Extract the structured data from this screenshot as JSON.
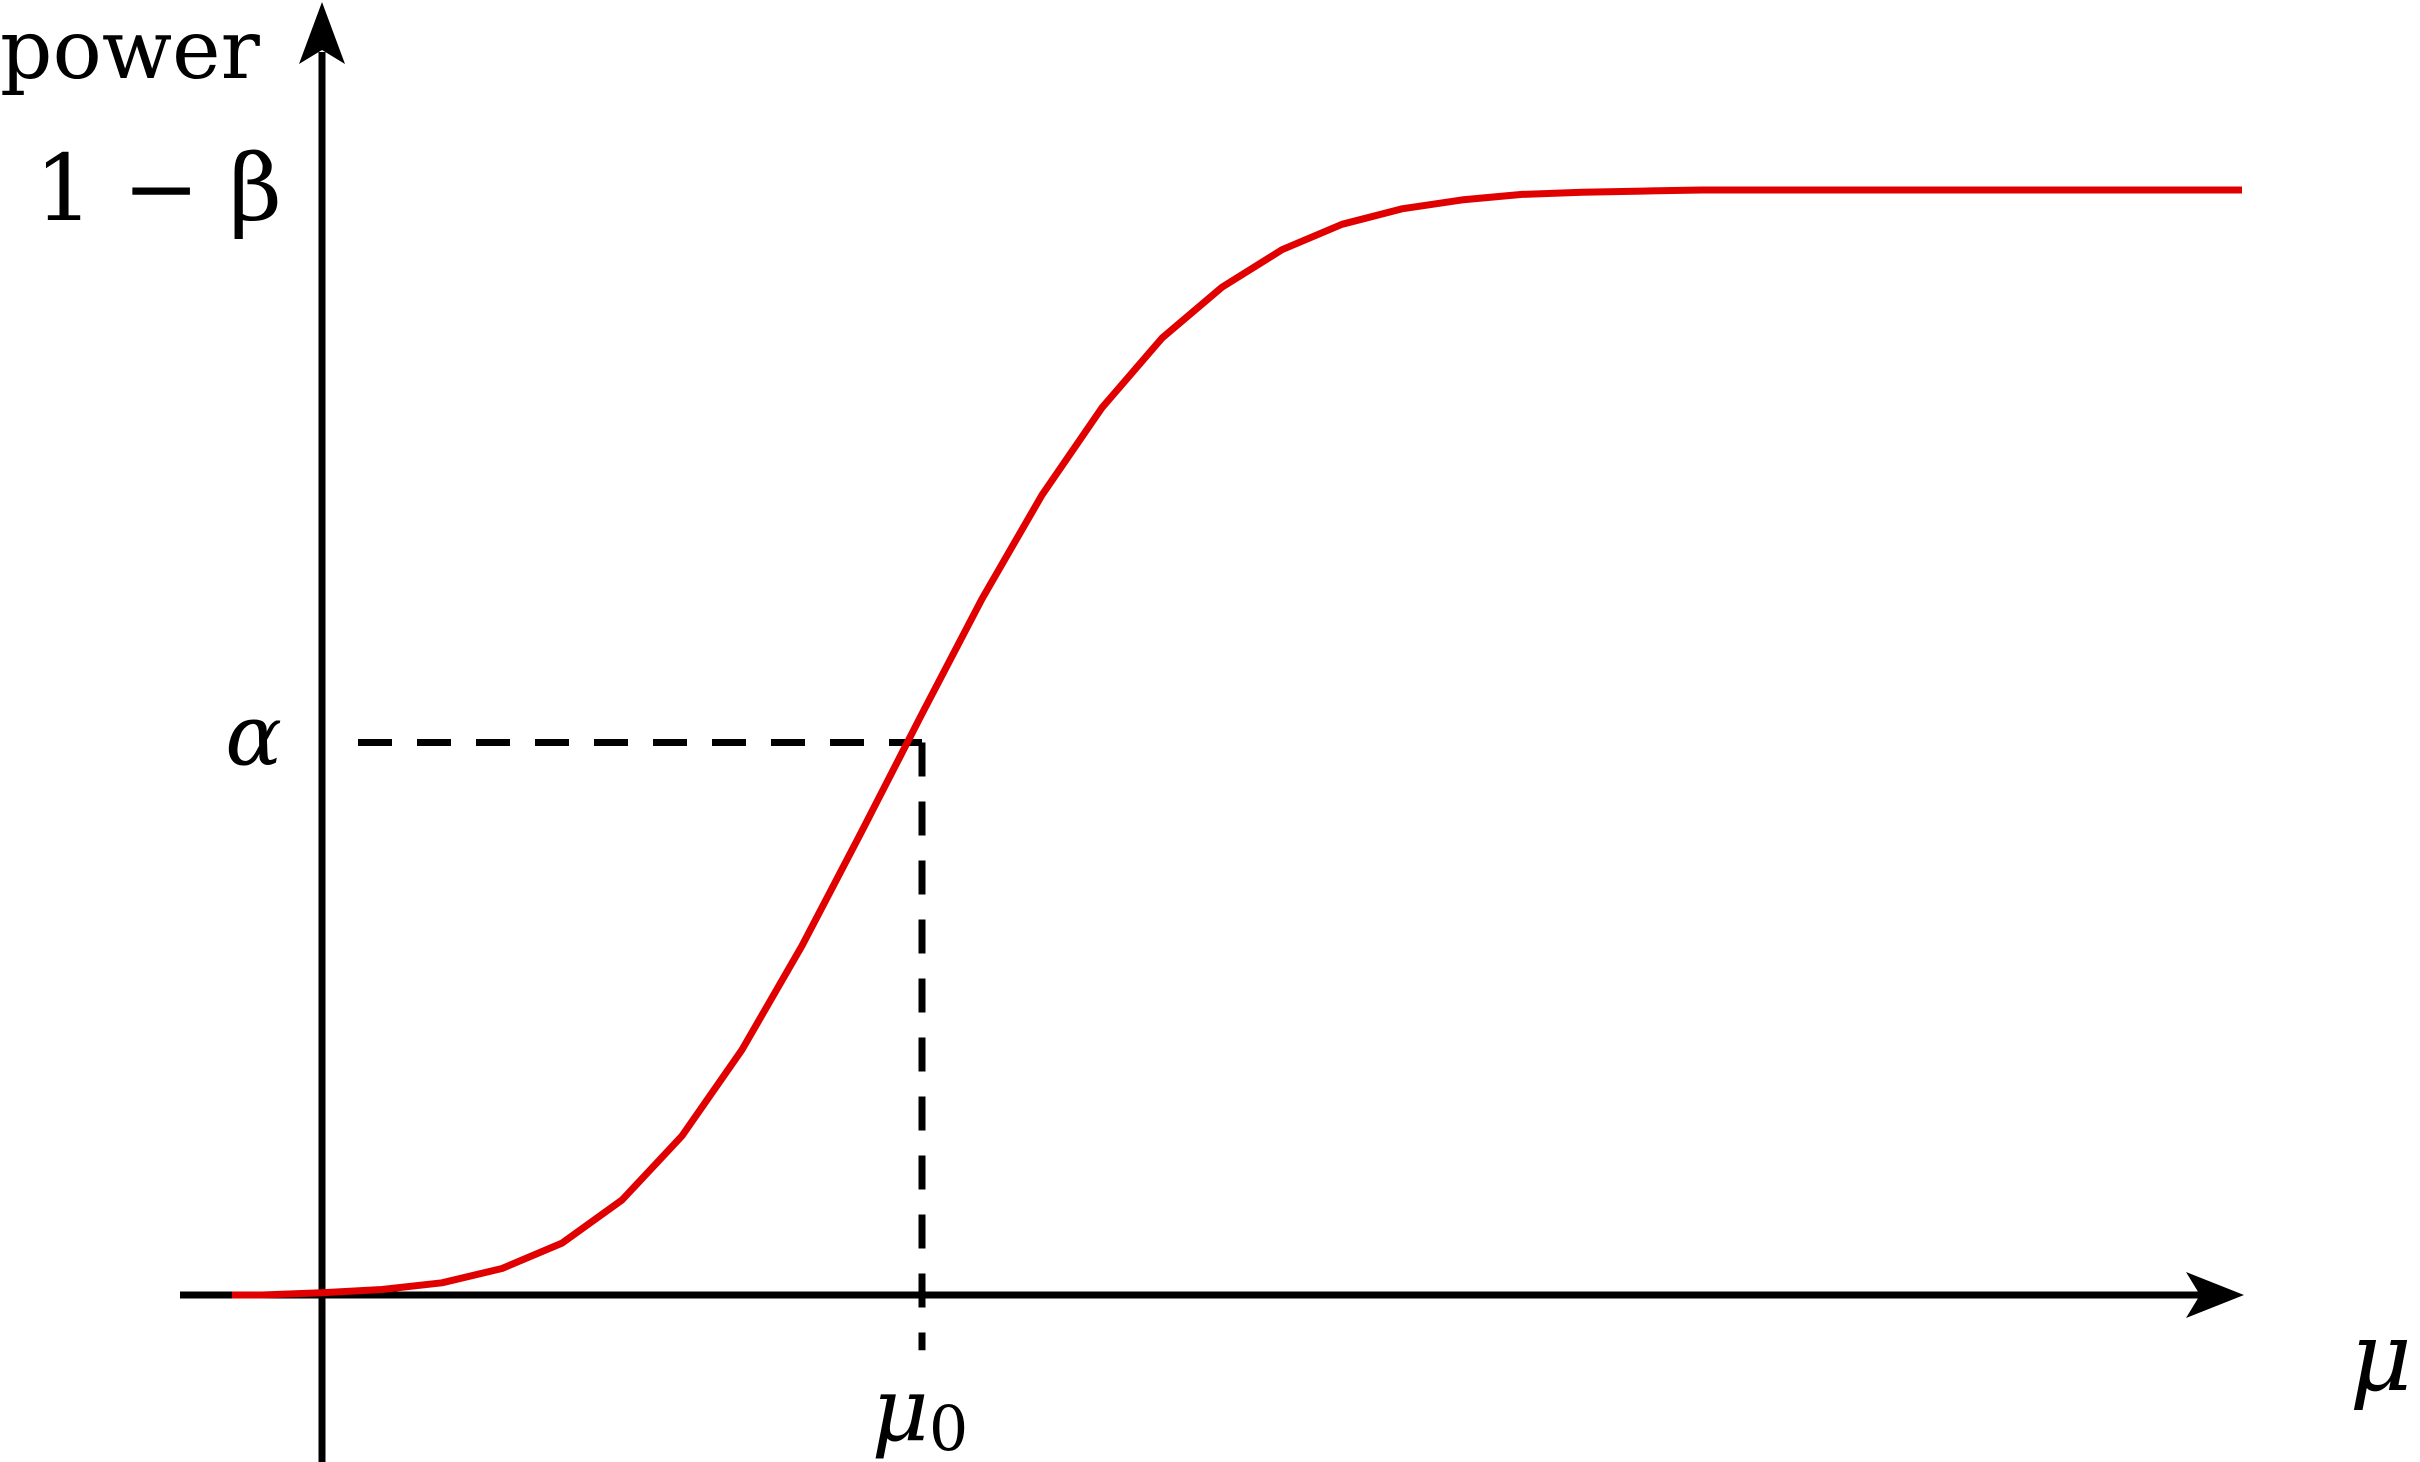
{
  "chart_data": {
    "type": "line",
    "title": "",
    "xlabel": "μ",
    "ylabel": "power",
    "xlim": [
      -3.2,
      33.3
    ],
    "ylim": [
      -0.15,
      1.15
    ],
    "grid": false,
    "legend": "none",
    "y_ticks": [
      {
        "value": 0.5,
        "label": "α"
      },
      {
        "value": 1.0,
        "label": "1 − β"
      }
    ],
    "x_ticks": [
      {
        "value": 10,
        "label": "μ",
        "subscript": "0"
      }
    ],
    "reference_lines": [
      {
        "kind": "horizontal-dashed",
        "y": 0.5,
        "x_from": 0.6,
        "x_to": 10
      },
      {
        "kind": "vertical-dashed",
        "x": 10,
        "y_from": -0.05,
        "y_to": 0.5
      }
    ],
    "series": [
      {
        "color": "#e00000",
        "x": [
          -1.5,
          -1,
          0,
          1,
          2,
          3,
          4,
          5,
          6,
          7,
          8,
          9,
          10,
          11,
          12,
          13,
          14,
          15,
          16,
          17,
          18,
          19,
          20,
          21,
          22,
          23,
          24,
          25,
          26,
          27,
          28,
          29,
          30,
          31,
          32
        ],
        "y": [
          0.0,
          0.0,
          0.002,
          0.005,
          0.011,
          0.024,
          0.047,
          0.086,
          0.144,
          0.222,
          0.316,
          0.42,
          0.526,
          0.63,
          0.724,
          0.803,
          0.866,
          0.912,
          0.946,
          0.969,
          0.983,
          0.991,
          0.996,
          0.998,
          0.999,
          1.0,
          1.0,
          1.0,
          1.0,
          1.0,
          1.0,
          1.0,
          1.0,
          1.0,
          1.0
        ]
      }
    ]
  },
  "colors": {
    "axis": "#000000",
    "curve": "#e00000"
  }
}
